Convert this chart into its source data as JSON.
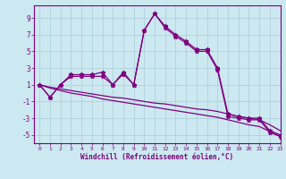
{
  "xlabel": "Windchill (Refroidissement éolien,°C)",
  "xlim": [
    -0.5,
    23
  ],
  "ylim": [
    -6,
    10.5
  ],
  "xticks": [
    0,
    1,
    2,
    3,
    4,
    5,
    6,
    7,
    8,
    9,
    10,
    11,
    12,
    13,
    14,
    15,
    16,
    17,
    18,
    19,
    20,
    21,
    22,
    23
  ],
  "yticks": [
    -5,
    -3,
    -1,
    1,
    3,
    5,
    7,
    9
  ],
  "background_color": "#cce8f0",
  "grid_color": "#aaccda",
  "line_color": "#800080",
  "hours": [
    0,
    1,
    2,
    3,
    4,
    5,
    6,
    7,
    8,
    9,
    10,
    11,
    12,
    13,
    14,
    15,
    16,
    17,
    18,
    19,
    20,
    21,
    22,
    23
  ],
  "series1": [
    1.0,
    -0.5,
    1.0,
    2.2,
    2.2,
    2.2,
    2.5,
    1.0,
    2.5,
    1.0,
    7.5,
    9.5,
    8.0,
    7.0,
    6.2,
    5.2,
    5.2,
    3.0,
    -2.5,
    -2.8,
    -3.0,
    -3.0,
    -4.5,
    -5.0
  ],
  "series2": [
    1.0,
    -0.5,
    1.0,
    2.0,
    2.0,
    2.0,
    2.0,
    1.0,
    2.3,
    1.0,
    7.5,
    9.5,
    7.8,
    6.8,
    6.0,
    5.0,
    5.0,
    2.8,
    -2.8,
    -3.0,
    -3.2,
    -3.2,
    -4.7,
    -5.2
  ],
  "series3": [
    1.0,
    0.7,
    0.5,
    0.3,
    0.1,
    -0.1,
    -0.3,
    -0.5,
    -0.6,
    -0.8,
    -1.0,
    -1.2,
    -1.3,
    -1.5,
    -1.7,
    -1.9,
    -2.0,
    -2.2,
    -2.5,
    -2.8,
    -3.0,
    -3.2,
    -3.8,
    -4.5
  ],
  "series4": [
    1.0,
    0.6,
    0.3,
    0.0,
    -0.2,
    -0.4,
    -0.7,
    -0.9,
    -1.1,
    -1.3,
    -1.5,
    -1.7,
    -1.9,
    -2.1,
    -2.3,
    -2.5,
    -2.7,
    -2.9,
    -3.2,
    -3.5,
    -3.8,
    -4.0,
    -4.6,
    -5.2
  ]
}
